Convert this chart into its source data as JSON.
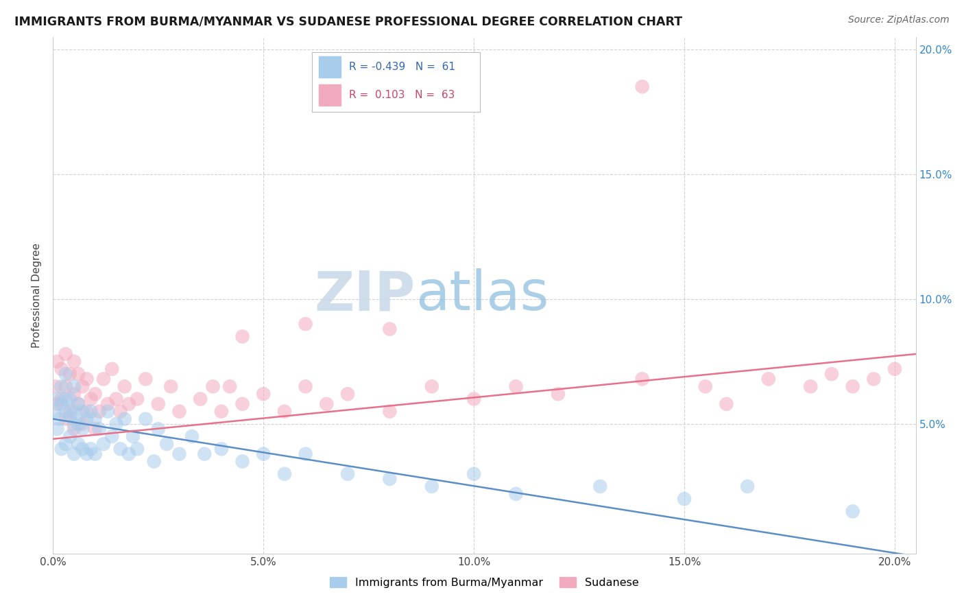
{
  "title": "IMMIGRANTS FROM BURMA/MYANMAR VS SUDANESE PROFESSIONAL DEGREE CORRELATION CHART",
  "source": "Source: ZipAtlas.com",
  "ylabel": "Professional Degree",
  "xlim": [
    0.0,
    0.205
  ],
  "ylim": [
    -0.002,
    0.205
  ],
  "xtick_vals": [
    0.0,
    0.05,
    0.1,
    0.15,
    0.2
  ],
  "ytick_vals": [
    0.05,
    0.1,
    0.15,
    0.2
  ],
  "series1_color": "#a8ccec",
  "series2_color": "#f2abbe",
  "series1_label": "Immigrants from Burma/Myanmar",
  "series2_label": "Sudanese",
  "legend_r1": "-0.439",
  "legend_n1": "61",
  "legend_r2": "0.103",
  "legend_n2": "63",
  "watermark_zip": "ZIP",
  "watermark_atlas": "atlas",
  "title_color": "#1a1a1a",
  "source_color": "#666666",
  "background_color": "#ffffff",
  "grid_color": "#cccccc",
  "line1_color": "#5b8ec4",
  "line2_color": "#e8708a",
  "line1_x0": 0.0,
  "line1_y0": 0.052,
  "line1_x1": 0.205,
  "line1_y1": -0.003,
  "line2_x0": 0.0,
  "line2_y0": 0.044,
  "line2_x1": 0.205,
  "line2_y1": 0.078,
  "s1_x": [
    0.0005,
    0.001,
    0.001,
    0.0015,
    0.002,
    0.002,
    0.002,
    0.003,
    0.003,
    0.003,
    0.003,
    0.004,
    0.004,
    0.004,
    0.005,
    0.005,
    0.005,
    0.005,
    0.006,
    0.006,
    0.006,
    0.007,
    0.007,
    0.007,
    0.008,
    0.008,
    0.009,
    0.009,
    0.01,
    0.01,
    0.011,
    0.012,
    0.013,
    0.014,
    0.015,
    0.016,
    0.017,
    0.018,
    0.019,
    0.02,
    0.022,
    0.024,
    0.025,
    0.027,
    0.03,
    0.033,
    0.036,
    0.04,
    0.045,
    0.05,
    0.055,
    0.06,
    0.07,
    0.08,
    0.09,
    0.1,
    0.11,
    0.13,
    0.15,
    0.165,
    0.19
  ],
  "s1_y": [
    0.055,
    0.048,
    0.06,
    0.052,
    0.04,
    0.058,
    0.065,
    0.042,
    0.055,
    0.06,
    0.07,
    0.045,
    0.053,
    0.06,
    0.038,
    0.05,
    0.055,
    0.065,
    0.042,
    0.05,
    0.058,
    0.04,
    0.048,
    0.055,
    0.038,
    0.052,
    0.04,
    0.055,
    0.038,
    0.052,
    0.048,
    0.042,
    0.055,
    0.045,
    0.05,
    0.04,
    0.052,
    0.038,
    0.045,
    0.04,
    0.052,
    0.035,
    0.048,
    0.042,
    0.038,
    0.045,
    0.038,
    0.04,
    0.035,
    0.038,
    0.03,
    0.038,
    0.03,
    0.028,
    0.025,
    0.03,
    0.022,
    0.025,
    0.02,
    0.025,
    0.015
  ],
  "s2_x": [
    0.0005,
    0.001,
    0.001,
    0.002,
    0.002,
    0.003,
    0.003,
    0.003,
    0.004,
    0.004,
    0.005,
    0.005,
    0.005,
    0.006,
    0.006,
    0.007,
    0.007,
    0.008,
    0.008,
    0.009,
    0.01,
    0.01,
    0.011,
    0.012,
    0.013,
    0.014,
    0.015,
    0.016,
    0.017,
    0.018,
    0.02,
    0.022,
    0.025,
    0.028,
    0.03,
    0.035,
    0.038,
    0.04,
    0.042,
    0.045,
    0.05,
    0.055,
    0.06,
    0.065,
    0.07,
    0.08,
    0.09,
    0.1,
    0.11,
    0.12,
    0.14,
    0.155,
    0.16,
    0.17,
    0.18,
    0.185,
    0.19,
    0.195,
    0.2,
    0.045,
    0.06,
    0.08,
    0.14
  ],
  "s2_y": [
    0.065,
    0.058,
    0.075,
    0.06,
    0.072,
    0.052,
    0.065,
    0.078,
    0.055,
    0.07,
    0.048,
    0.062,
    0.075,
    0.058,
    0.07,
    0.05,
    0.065,
    0.055,
    0.068,
    0.06,
    0.048,
    0.062,
    0.055,
    0.068,
    0.058,
    0.072,
    0.06,
    0.055,
    0.065,
    0.058,
    0.06,
    0.068,
    0.058,
    0.065,
    0.055,
    0.06,
    0.065,
    0.055,
    0.065,
    0.058,
    0.062,
    0.055,
    0.065,
    0.058,
    0.062,
    0.055,
    0.065,
    0.06,
    0.065,
    0.062,
    0.068,
    0.065,
    0.058,
    0.068,
    0.065,
    0.07,
    0.065,
    0.068,
    0.072,
    0.085,
    0.09,
    0.088,
    0.185
  ]
}
